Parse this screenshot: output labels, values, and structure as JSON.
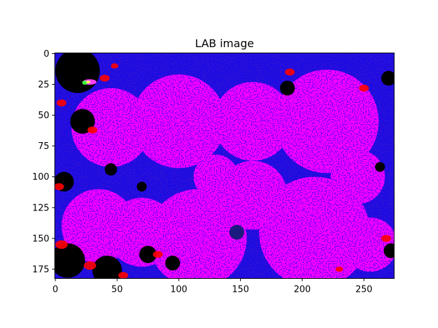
{
  "chart_data": {
    "type": "heatmap",
    "title": "LAB image",
    "xlabel": "",
    "ylabel": "",
    "image_width": 275,
    "image_height": 183,
    "xlim": [
      -0.5,
      274.5
    ],
    "ylim": [
      182.5,
      -0.5
    ],
    "y_inverted": true,
    "x_ticks": [
      0,
      50,
      100,
      150,
      200,
      250
    ],
    "y_ticks": [
      0,
      25,
      50,
      75,
      100,
      125,
      150,
      175
    ],
    "x_tick_labels": [
      "0",
      "50",
      "100",
      "150",
      "200",
      "250"
    ],
    "y_tick_labels": [
      "0",
      "25",
      "50",
      "75",
      "100",
      "125",
      "150",
      "175"
    ],
    "grid": false,
    "colors": {
      "dominant": "#ff00ff",
      "edges": "#0000ff",
      "dark_regions": "#000000",
      "highlights": "#ff0000",
      "accent_green": "#40ff40",
      "accent_yellow": "#ffff60"
    },
    "regions": [
      {
        "cx": 100,
        "cy": 55,
        "r": 38,
        "color": "#ff00ff"
      },
      {
        "cx": 220,
        "cy": 55,
        "r": 42,
        "color": "#ff00ff"
      },
      {
        "cx": 160,
        "cy": 55,
        "r": 32,
        "color": "#ff00ff"
      },
      {
        "cx": 115,
        "cy": 150,
        "r": 40,
        "color": "#ff00ff"
      },
      {
        "cx": 70,
        "cy": 145,
        "r": 28,
        "color": "#ff00ff"
      },
      {
        "cx": 35,
        "cy": 140,
        "r": 30,
        "color": "#ff00ff"
      },
      {
        "cx": 210,
        "cy": 145,
        "r": 45,
        "color": "#ff00ff"
      },
      {
        "cx": 255,
        "cy": 155,
        "r": 22,
        "color": "#ff00ff"
      },
      {
        "cx": 45,
        "cy": 60,
        "r": 32,
        "color": "#ff00ff"
      },
      {
        "cx": 160,
        "cy": 115,
        "r": 28,
        "color": "#ff00ff"
      },
      {
        "cx": 245,
        "cy": 100,
        "r": 22,
        "color": "#ff00ff"
      },
      {
        "cx": 130,
        "cy": 100,
        "r": 18,
        "color": "#ff00ff"
      }
    ],
    "dark_patches": [
      {
        "cx": 18,
        "cy": 14,
        "r": 18,
        "color": "#000000"
      },
      {
        "cx": 22,
        "cy": 55,
        "r": 10,
        "color": "#000000"
      },
      {
        "cx": 7,
        "cy": 104,
        "r": 8,
        "color": "#000000"
      },
      {
        "cx": 10,
        "cy": 168,
        "r": 14,
        "color": "#000000"
      },
      {
        "cx": 42,
        "cy": 176,
        "r": 12,
        "color": "#000000"
      },
      {
        "cx": 75,
        "cy": 163,
        "r": 7,
        "color": "#000000"
      },
      {
        "cx": 95,
        "cy": 170,
        "r": 6,
        "color": "#000000"
      },
      {
        "cx": 147,
        "cy": 145,
        "r": 6,
        "color": "#1a1a80"
      },
      {
        "cx": 188,
        "cy": 28,
        "r": 6,
        "color": "#000000"
      },
      {
        "cx": 270,
        "cy": 20,
        "r": 6,
        "color": "#000000"
      },
      {
        "cx": 272,
        "cy": 160,
        "r": 6,
        "color": "#000000"
      },
      {
        "cx": 45,
        "cy": 94,
        "r": 5,
        "color": "#000000"
      },
      {
        "cx": 70,
        "cy": 108,
        "r": 4,
        "color": "#000000"
      },
      {
        "cx": 263,
        "cy": 92,
        "r": 4,
        "color": "#000000"
      }
    ],
    "red_specks": [
      {
        "cx": 5,
        "cy": 40,
        "r": 4
      },
      {
        "cx": 30,
        "cy": 62,
        "r": 4
      },
      {
        "cx": 3,
        "cy": 108,
        "r": 4
      },
      {
        "cx": 5,
        "cy": 155,
        "r": 5
      },
      {
        "cx": 28,
        "cy": 172,
        "r": 5
      },
      {
        "cx": 55,
        "cy": 180,
        "r": 4
      },
      {
        "cx": 83,
        "cy": 163,
        "r": 4
      },
      {
        "cx": 190,
        "cy": 15,
        "r": 4
      },
      {
        "cx": 250,
        "cy": 28,
        "r": 4
      },
      {
        "cx": 268,
        "cy": 150,
        "r": 4
      },
      {
        "cx": 40,
        "cy": 20,
        "r": 4
      },
      {
        "cx": 48,
        "cy": 10,
        "r": 3
      },
      {
        "cx": 230,
        "cy": 175,
        "r": 3
      }
    ]
  }
}
